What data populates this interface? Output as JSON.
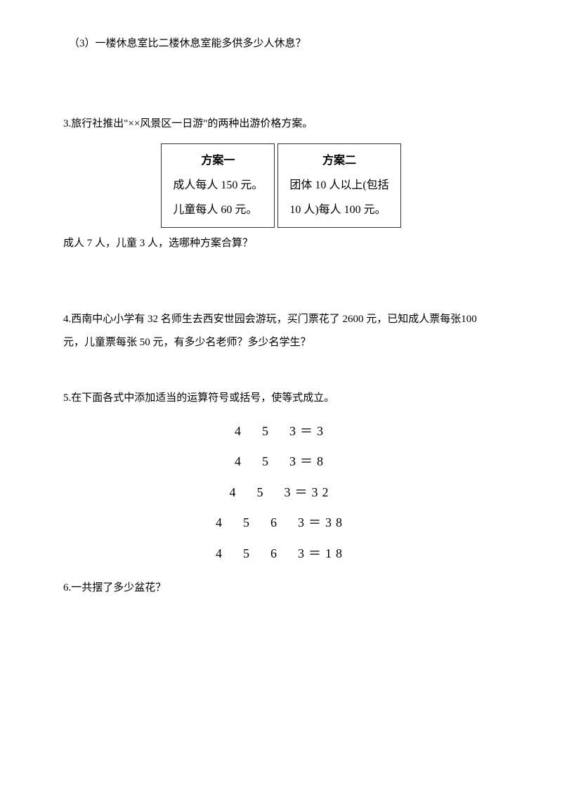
{
  "q2_sub3": "（3）一楼休息室比二楼休息室能多供多少人休息？",
  "q3": {
    "intro": "3.旅行社推出\"××风景区一日游\"的两种出游价格方案。",
    "plan1": {
      "header": "方案一",
      "line1": "成人每人 150 元。",
      "line2": "儿童每人 60 元。"
    },
    "plan2": {
      "header": "方案二",
      "line1": "团体 10 人以上(包括",
      "line2": "10 人)每人 100 元。"
    },
    "followup": "成人 7 人，儿童 3 人，选哪种方案合算？"
  },
  "q4": "4.西南中心小学有 32 名师生去西安世园会游玩，买门票花了 2600 元，已知成人票每张100 元，儿童票每张 50 元，有多少名老师？多少名学生？",
  "q5": {
    "intro": "5.在下面各式中添加适当的运算符号或括号，使等式成立。",
    "eq1": "4　5　3＝3",
    "eq2": "4　5　3＝8",
    "eq3": "4　5　3＝32",
    "eq4": "4　5　6　3＝38",
    "eq5": "4　5　6　3＝18"
  },
  "q6": "6.一共摆了多少盆花？"
}
